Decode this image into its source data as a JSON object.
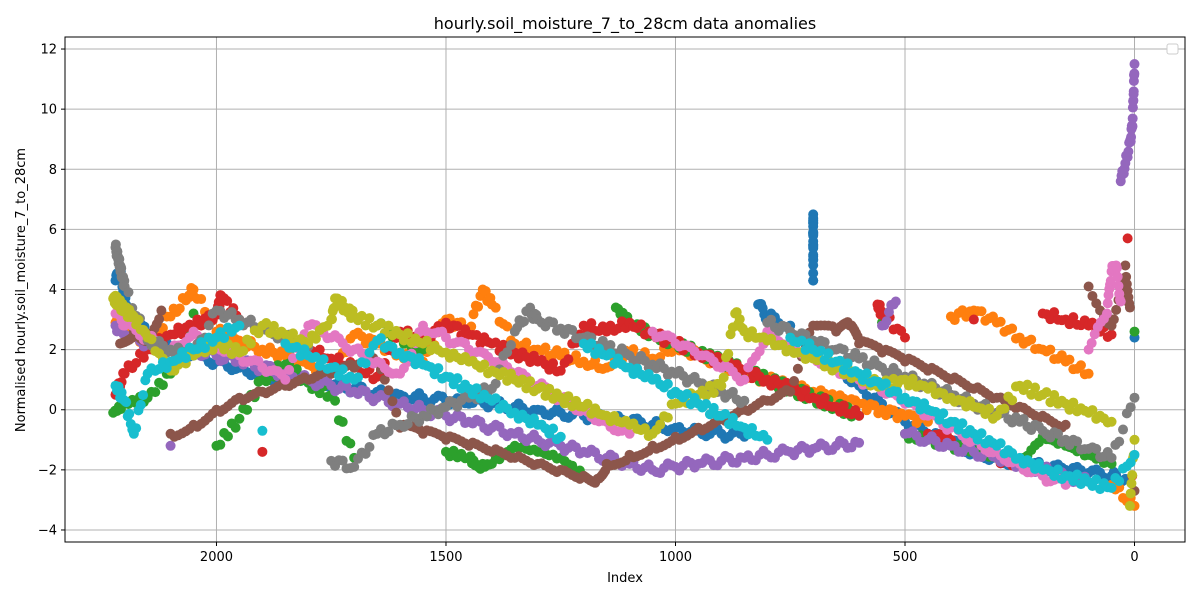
{
  "chart_data": {
    "type": "scatter",
    "title": "hourly.soil_moisture_7_to_28cm data anomalies",
    "xlabel": "Index",
    "ylabel": "Normalised hourly.soil_moisture_7_to_28cm",
    "x_inverted": true,
    "xlim": [
      2330,
      -110
    ],
    "ylim": [
      -4.4,
      12.4
    ],
    "xticks": [
      2000,
      1500,
      1000,
      500,
      0
    ],
    "xtick_labels": [
      "2000",
      "1500",
      "1000",
      "500",
      "0"
    ],
    "yticks": [
      -4,
      -2,
      0,
      2,
      4,
      6,
      8,
      10,
      12
    ],
    "ytick_labels": [
      "−4",
      "−2",
      "0",
      "2",
      "4",
      "6",
      "8",
      "10",
      "12"
    ],
    "grid": true,
    "legend_placement": "top-right",
    "legend_entries": [],
    "colors": [
      "#1f77b4",
      "#ff7f0e",
      "#2ca02c",
      "#d62728",
      "#9467bd",
      "#8c564b",
      "#e377c2",
      "#7f7f7f",
      "#bcbd22",
      "#17becf"
    ],
    "series": [
      {
        "color": "#1f77b4",
        "x": [
          2220,
          2210,
          2200,
          2190,
          2150,
          2100,
          2050,
          2000,
          1950,
          1900,
          1850,
          1800,
          1750,
          1700,
          1650,
          1600,
          1550,
          1500,
          1450,
          1400,
          1350,
          1300,
          1250,
          1200,
          1150,
          1100,
          1050,
          1000,
          950,
          900,
          850,
          820,
          800,
          750,
          700,
          700,
          700,
          700,
          700,
          650,
          600,
          550,
          500,
          450,
          400,
          350,
          300,
          250,
          200,
          150,
          100,
          50,
          20,
          0
        ],
        "y": [
          4.3,
          4.6,
          3.8,
          3.2,
          2.5,
          2.1,
          1.8,
          1.6,
          1.4,
          1.2,
          1.0,
          0.9,
          0.8,
          0.7,
          0.6,
          0.5,
          0.4,
          0.3,
          0.2,
          0.2,
          0.1,
          0.0,
          -0.1,
          -0.2,
          -0.3,
          -0.4,
          -0.5,
          -0.6,
          -0.7,
          -0.8,
          -0.9,
          3.5,
          3.1,
          2.8,
          6.5,
          6.1,
          5.6,
          5.1,
          4.3,
          1.5,
          0.8,
          0.2,
          -0.4,
          -0.8,
          -1.1,
          -1.4,
          -1.6,
          -1.8,
          -1.9,
          -2.0,
          -2.1,
          -2.2,
          -2.3,
          2.4
        ]
      },
      {
        "color": "#ff7f0e",
        "x": [
          2220,
          2200,
          2150,
          2100,
          2060,
          2050,
          2000,
          1950,
          1900,
          1850,
          1800,
          1750,
          1700,
          1650,
          1600,
          1550,
          1500,
          1450,
          1420,
          1400,
          1350,
          1300,
          1250,
          1200,
          1150,
          1100,
          1050,
          1000,
          950,
          900,
          850,
          800,
          750,
          700,
          650,
          600,
          550,
          500,
          450,
          400,
          350,
          300,
          250,
          200,
          150,
          100,
          50,
          0
        ],
        "y": [
          2.9,
          2.6,
          2.2,
          3.1,
          3.8,
          4.0,
          2.6,
          2.3,
          2.0,
          1.8,
          1.5,
          1.2,
          2.5,
          2.2,
          1.9,
          1.6,
          3.0,
          2.7,
          4.0,
          3.5,
          2.2,
          2.0,
          1.8,
          1.6,
          1.4,
          1.9,
          1.7,
          2.1,
          1.8,
          1.5,
          1.2,
          1.0,
          0.8,
          0.6,
          0.4,
          0.2,
          0.0,
          -0.2,
          -0.4,
          3.1,
          3.3,
          2.9,
          2.4,
          2.0,
          1.6,
          1.2,
          -2.5,
          -3.2
        ]
      },
      {
        "color": "#2ca02c",
        "x": [
          2225,
          2200,
          2150,
          2100,
          2050,
          2000,
          1950,
          1900,
          1850,
          1800,
          1750,
          1700,
          1650,
          1600,
          1550,
          1500,
          1450,
          1430,
          1400,
          1350,
          1300,
          1250,
          1200,
          1130,
          1100,
          1050,
          1000,
          950,
          900,
          850,
          800,
          750,
          700,
          650,
          600,
          550,
          500,
          450,
          400,
          350,
          300,
          250,
          200,
          150,
          100,
          50,
          0
        ],
        "y": [
          -0.1,
          0.2,
          0.4,
          1.2,
          3.2,
          -1.2,
          -0.3,
          1.0,
          1.5,
          0.9,
          0.5,
          -1.6,
          2.8,
          2.4,
          2.0,
          -1.4,
          -1.6,
          -1.9,
          -1.8,
          -1.2,
          -1.4,
          -1.6,
          -2.2,
          3.4,
          2.9,
          2.5,
          2.2,
          1.9,
          1.6,
          1.3,
          1.0,
          0.7,
          0.4,
          0.1,
          -0.2,
          2.9,
          -0.8,
          -1.0,
          -1.2,
          -1.4,
          -1.6,
          -1.8,
          -0.9,
          -1.2,
          -1.5,
          -1.8,
          2.6
        ]
      },
      {
        "color": "#d62728",
        "x": [
          2220,
          2200,
          2150,
          2100,
          2050,
          2000,
          1990,
          1950,
          1900,
          1850,
          1800,
          1750,
          1700,
          1650,
          1600,
          1550,
          1500,
          1450,
          1400,
          1350,
          1300,
          1250,
          1200,
          1150,
          1100,
          1050,
          1000,
          950,
          900,
          850,
          800,
          750,
          700,
          650,
          600,
          560,
          550,
          500,
          450,
          400,
          350,
          300,
          250,
          200,
          150,
          100,
          50,
          15,
          5
        ],
        "y": [
          0.5,
          1.2,
          2.0,
          2.5,
          2.8,
          3.2,
          3.8,
          3.0,
          -1.4,
          2.4,
          2.0,
          1.7,
          1.4,
          1.1,
          2.6,
          2.3,
          2.9,
          2.5,
          2.2,
          1.9,
          1.6,
          1.3,
          2.8,
          2.6,
          2.9,
          2.5,
          2.2,
          1.9,
          1.6,
          1.3,
          1.0,
          0.7,
          0.4,
          0.1,
          -0.2,
          3.5,
          3.2,
          2.4,
          -0.8,
          -1.0,
          3.0,
          -1.6,
          -1.8,
          3.2,
          3.0,
          2.8,
          2.5,
          5.7,
          -2.2
        ]
      },
      {
        "color": "#9467bd",
        "x": [
          2220,
          2200,
          2150,
          2100,
          2050,
          2000,
          1950,
          1900,
          1850,
          1800,
          1750,
          1700,
          1650,
          1600,
          1550,
          1500,
          1450,
          1400,
          1350,
          1300,
          1250,
          1200,
          1150,
          1100,
          1050,
          1000,
          950,
          900,
          850,
          800,
          750,
          700,
          650,
          600,
          550,
          520,
          500,
          450,
          400,
          350,
          300,
          250,
          200,
          150,
          100,
          50,
          30,
          20,
          10,
          5,
          2,
          0
        ],
        "y": [
          2.8,
          2.5,
          2.2,
          -1.2,
          2.0,
          1.8,
          1.6,
          1.4,
          1.2,
          1.0,
          0.8,
          0.6,
          0.4,
          0.2,
          0.0,
          -0.2,
          -0.4,
          -0.6,
          -0.8,
          -1.0,
          -1.2,
          -1.4,
          -1.6,
          -1.8,
          -2.0,
          -1.9,
          -1.8,
          -1.7,
          -1.6,
          -1.5,
          -1.4,
          -1.3,
          -1.2,
          -1.1,
          2.8,
          3.6,
          -0.8,
          -1.0,
          -1.2,
          -1.4,
          -1.6,
          -1.8,
          -2.0,
          -2.2,
          -2.4,
          3.0,
          7.6,
          8.2,
          8.9,
          9.4,
          10.5,
          11.5
        ]
      },
      {
        "color": "#8c564b",
        "x": [
          2210,
          2180,
          2150,
          2120,
          2100,
          2050,
          2000,
          1950,
          1900,
          1850,
          1800,
          1750,
          1700,
          1650,
          1600,
          1550,
          1500,
          1450,
          1400,
          1350,
          1300,
          1250,
          1200,
          1170,
          1150,
          1100,
          1050,
          1000,
          950,
          900,
          850,
          800,
          750,
          700,
          650,
          620,
          600,
          550,
          500,
          450,
          400,
          350,
          300,
          250,
          200,
          150,
          100,
          50,
          20,
          10,
          0
        ],
        "y": [
          2.2,
          2.6,
          2.4,
          3.3,
          -0.8,
          -0.5,
          0.0,
          0.4,
          0.6,
          0.8,
          1.0,
          1.2,
          1.4,
          1.6,
          -0.6,
          -0.8,
          -1.0,
          -1.2,
          -1.4,
          -1.6,
          -1.8,
          -2.0,
          -2.2,
          -2.3,
          -1.8,
          -1.5,
          -1.2,
          -0.9,
          -0.6,
          -0.3,
          0.0,
          0.3,
          0.6,
          2.8,
          2.6,
          2.8,
          2.2,
          1.9,
          1.6,
          1.3,
          1.0,
          0.7,
          0.4,
          0.1,
          -0.2,
          -0.5,
          4.1,
          2.8,
          4.8,
          3.4,
          -2.7
        ]
      },
      {
        "color": "#e377c2",
        "x": [
          2220,
          2200,
          2150,
          2100,
          2050,
          2000,
          1950,
          1900,
          1850,
          1800,
          1750,
          1700,
          1650,
          1600,
          1550,
          1500,
          1450,
          1400,
          1350,
          1300,
          1250,
          1200,
          1150,
          1100,
          1050,
          1000,
          950,
          900,
          850,
          800,
          750,
          700,
          650,
          600,
          550,
          500,
          450,
          400,
          350,
          300,
          250,
          200,
          150,
          100,
          60,
          50,
          40,
          30
        ],
        "y": [
          3.2,
          2.8,
          2.4,
          2.0,
          2.6,
          2.2,
          1.8,
          1.4,
          1.0,
          2.8,
          2.4,
          2.0,
          1.6,
          1.2,
          2.8,
          2.4,
          2.0,
          1.6,
          1.2,
          0.8,
          0.4,
          0.0,
          -0.4,
          -0.8,
          2.6,
          2.2,
          1.8,
          1.4,
          1.0,
          2.6,
          2.2,
          1.8,
          1.4,
          1.0,
          0.6,
          0.2,
          -0.2,
          -0.6,
          -1.0,
          -1.4,
          -1.8,
          -2.2,
          -2.5,
          2.0,
          3.2,
          4.6,
          4.8,
          3.6
        ]
      },
      {
        "color": "#7f7f7f",
        "x": [
          2220,
          2215,
          2210,
          2205,
          2200,
          2150,
          2100,
          2050,
          2000,
          1950,
          1900,
          1850,
          1800,
          1750,
          1700,
          1650,
          1600,
          1550,
          1500,
          1450,
          1400,
          1350,
          1320,
          1300,
          1250,
          1200,
          1150,
          1100,
          1050,
          1000,
          950,
          900,
          850,
          800,
          750,
          700,
          650,
          600,
          550,
          500,
          450,
          400,
          350,
          300,
          250,
          200,
          150,
          100,
          50,
          0
        ],
        "y": [
          5.4,
          5.1,
          4.8,
          4.4,
          4.1,
          2.3,
          2.0,
          1.8,
          3.3,
          3.0,
          2.7,
          2.4,
          2.1,
          -1.7,
          -1.9,
          -0.8,
          -0.5,
          -0.2,
          0.1,
          0.4,
          0.7,
          2.6,
          3.3,
          3.0,
          2.7,
          2.4,
          2.1,
          1.8,
          1.5,
          1.2,
          0.9,
          0.6,
          0.3,
          2.9,
          2.6,
          2.3,
          2.0,
          1.7,
          1.4,
          1.1,
          0.8,
          0.5,
          0.2,
          -0.1,
          -0.4,
          -0.7,
          -1.0,
          -1.3,
          -1.6,
          0.4
        ]
      },
      {
        "color": "#bcbd22",
        "x": [
          2225,
          2215,
          2200,
          2180,
          2150,
          2100,
          2050,
          2000,
          1950,
          1900,
          1850,
          1800,
          1750,
          1740,
          1720,
          1700,
          1650,
          1600,
          1550,
          1500,
          1450,
          1400,
          1350,
          1300,
          1250,
          1200,
          1150,
          1100,
          1050,
          1000,
          950,
          900,
          870,
          850,
          800,
          750,
          700,
          650,
          600,
          550,
          500,
          450,
          400,
          350,
          300,
          250,
          200,
          150,
          100,
          50,
          10,
          0
        ],
        "y": [
          3.7,
          3.6,
          3.3,
          3.1,
          2.4,
          1.3,
          1.8,
          2.2,
          1.9,
          2.8,
          2.5,
          2.2,
          3.0,
          3.7,
          3.4,
          3.1,
          2.8,
          2.5,
          2.2,
          1.9,
          1.6,
          1.3,
          1.0,
          0.7,
          0.4,
          0.1,
          -0.2,
          -0.5,
          -0.8,
          0.2,
          0.5,
          0.8,
          3.2,
          2.6,
          2.3,
          2.0,
          1.7,
          1.4,
          1.1,
          0.8,
          1.0,
          0.7,
          0.4,
          0.1,
          -0.2,
          0.8,
          0.5,
          0.2,
          -0.1,
          -0.4,
          -3.2,
          -1.0
        ]
      },
      {
        "color": "#17becf",
        "x": [
          2220,
          2200,
          2180,
          2150,
          2100,
          2050,
          2000,
          1950,
          1900,
          1850,
          1800,
          1750,
          1700,
          1650,
          1600,
          1550,
          1500,
          1450,
          1400,
          1350,
          1300,
          1250,
          1200,
          1150,
          1100,
          1050,
          1000,
          950,
          900,
          850,
          800,
          750,
          700,
          650,
          600,
          550,
          500,
          450,
          400,
          350,
          300,
          250,
          200,
          150,
          100,
          50,
          0
        ],
        "y": [
          0.8,
          0.3,
          -0.8,
          1.2,
          1.6,
          2.0,
          2.4,
          2.8,
          -0.7,
          2.2,
          1.8,
          1.4,
          1.0,
          2.3,
          1.9,
          1.5,
          1.1,
          0.7,
          0.3,
          -0.1,
          -0.5,
          -0.9,
          2.2,
          1.8,
          1.4,
          1.0,
          0.6,
          0.2,
          -0.2,
          -0.6,
          -1.0,
          2.4,
          2.0,
          1.6,
          1.2,
          0.8,
          0.4,
          0.0,
          -0.4,
          -0.8,
          -1.2,
          -1.6,
          -2.0,
          -2.2,
          -2.4,
          -2.6,
          -1.5
        ]
      }
    ]
  }
}
